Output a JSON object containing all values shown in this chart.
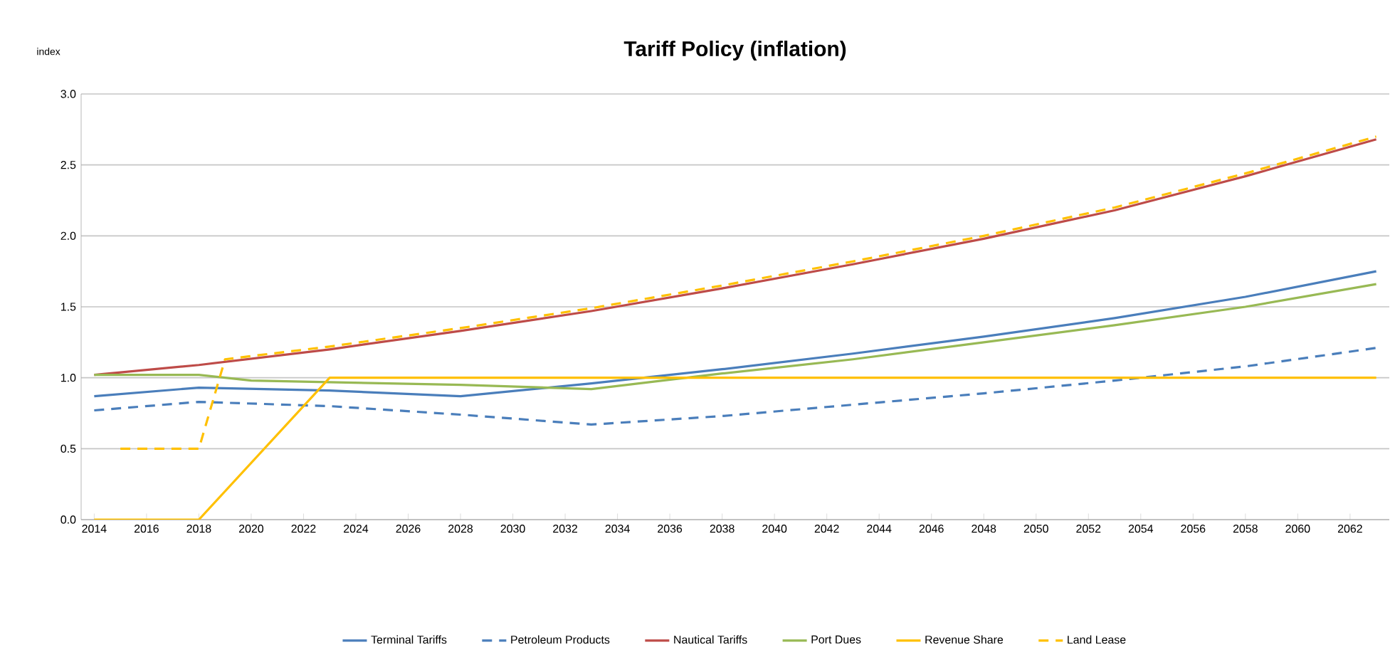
{
  "chart_data": {
    "type": "line",
    "title": "Tariff Policy (inflation)",
    "ylabel": "index",
    "xlim": [
      2013.5,
      2063.5
    ],
    "xticks": [
      2014,
      2016,
      2018,
      2020,
      2022,
      2024,
      2026,
      2028,
      2030,
      2032,
      2034,
      2036,
      2038,
      2040,
      2042,
      2044,
      2046,
      2048,
      2050,
      2052,
      2054,
      2056,
      2058,
      2060,
      2062
    ],
    "ylim": [
      0,
      3
    ],
    "yticks": [
      {
        "value": 0,
        "label": "0.0"
      },
      {
        "value": 0.5,
        "label": "0.5"
      },
      {
        "value": 1,
        "label": "1.0"
      },
      {
        "value": 1.5,
        "label": "1.5"
      },
      {
        "value": 2,
        "label": "2.0"
      },
      {
        "value": 2.5,
        "label": "2.5"
      },
      {
        "value": 3,
        "label": "3.0"
      }
    ],
    "grid": "y",
    "legend": "bottom",
    "marker": "none",
    "series": [
      {
        "name": "Terminal Tariffs",
        "color": "#4a7ebb",
        "line_style": "solid",
        "x": [
          2014,
          2018,
          2023,
          2028,
          2033,
          2038,
          2043,
          2048,
          2053,
          2058,
          2063
        ],
        "values": [
          0.87,
          0.93,
          0.91,
          0.87,
          0.96,
          1.06,
          1.17,
          1.29,
          1.42,
          1.57,
          1.75
        ]
      },
      {
        "name": "Petroleum Products",
        "color": "#4a7ebb",
        "line_style": "dashed",
        "x": [
          2014,
          2018,
          2023,
          2028,
          2033,
          2038,
          2043,
          2048,
          2053,
          2058,
          2063
        ],
        "values": [
          0.77,
          0.83,
          0.8,
          0.74,
          0.67,
          0.73,
          0.81,
          0.89,
          0.98,
          1.08,
          1.21
        ]
      },
      {
        "name": "Nautical Tariffs",
        "color": "#be4b48",
        "line_style": "solid",
        "x": [
          2014,
          2018,
          2023,
          2028,
          2033,
          2038,
          2043,
          2048,
          2053,
          2058,
          2063
        ],
        "values": [
          1.02,
          1.09,
          1.2,
          1.33,
          1.47,
          1.63,
          1.8,
          1.98,
          2.18,
          2.42,
          2.68
        ]
      },
      {
        "name": "Port Dues",
        "color": "#98b954",
        "line_style": "solid",
        "x": [
          2014,
          2018,
          2020,
          2028,
          2033,
          2038,
          2043,
          2048,
          2053,
          2058,
          2063
        ],
        "values": [
          1.02,
          1.02,
          0.98,
          0.95,
          0.92,
          1.03,
          1.13,
          1.25,
          1.37,
          1.5,
          1.66
        ]
      },
      {
        "name": "Revenue Share",
        "color": "#ffc000",
        "line_style": "solid",
        "x": [
          2014,
          2018,
          2023,
          2063
        ],
        "values": [
          0,
          0,
          1,
          1
        ]
      },
      {
        "name": "Land Lease",
        "color": "#ffc000",
        "line_style": "dashed",
        "x": [
          2015,
          2018,
          2019,
          2023,
          2028,
          2033,
          2038,
          2043,
          2048,
          2053,
          2058,
          2063
        ],
        "values": [
          0.5,
          0.5,
          1.13,
          1.22,
          1.35,
          1.49,
          1.65,
          1.82,
          2.0,
          2.2,
          2.44,
          2.7
        ]
      }
    ]
  }
}
